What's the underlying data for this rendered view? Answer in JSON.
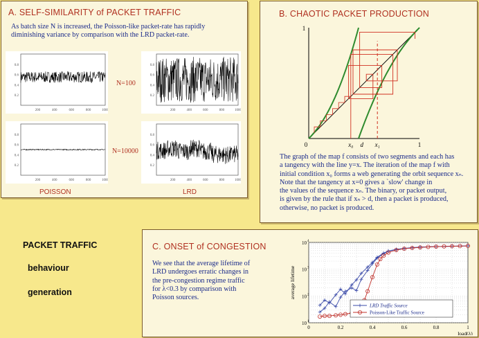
{
  "panel_a": {
    "title": "A.  SELF-SIMILARITY of PACKET TRAFFIC",
    "text": [
      "As batch size N is increased, the Poisson-like packet-rate has rapidly",
      "diminishing variance by comparison with the LRD packet-rate."
    ],
    "n100": "N=100",
    "n10000": "N=10000",
    "poisson_label": "POISSON",
    "lrd_label": "LRD",
    "xticks": [
      "200",
      "400",
      "600",
      "800",
      "1000"
    ],
    "yticks": [
      "0.8",
      "0.6",
      "0.4",
      "0.2"
    ]
  },
  "panel_b": {
    "title": "B. CHAOTIC PACKET PRODUCTION",
    "axis_top": "1",
    "axis_zero": "0",
    "axis_right": "1",
    "x0_label": "x₀",
    "d_label": "d",
    "x1_label": "x₁",
    "text": [
      "The graph of the map f  consists of two segments and each  has",
      "a tangency with the line  y=x. The iteration of the map  f  with",
      "initial condition x₀ forms a web generating  the orbit sequence xₙ.",
      "Note that the tangency at x=0 gives a `slow' change  in",
      "the values of the sequence xₙ.  The binary, or packet output,",
      "is given by the rule that if xₙ > d, then a packet is produced,",
      "otherwise, no packet is produced."
    ]
  },
  "panel_c": {
    "title": "C.  ONSET of CONGESTION",
    "text": [
      "We see that the average lifetime of",
      "LRD undergoes erratic changes in",
      "the pre-congestion regime traffic",
      "for λ<0.3 by comparison with",
      "Poisson sources."
    ],
    "ylabel": "average lifetime",
    "xlabel": "load(λ)",
    "legend_lrd": "LRD Traffic Source",
    "legend_poisson": "Poisson-Like Traffic Source"
  },
  "left": {
    "heading": "PACKET TRAFFIC",
    "item1": "behaviour",
    "item2": "generation"
  },
  "chart_data": {
    "type": "line",
    "xlabel": "load(λ)",
    "ylabel": "average lifetime",
    "xlim": [
      0,
      1
    ],
    "ylim": [
      10,
      10000
    ],
    "yscale": "log",
    "x_ticks": [
      "0",
      "0.2",
      "0.4",
      "0.6",
      "0.8",
      "1"
    ],
    "y_ticks": [
      "10^1",
      "10^2",
      "10^3",
      "10^4"
    ],
    "series": [
      {
        "name": "LRD Traffic Source",
        "color": "#3a4aa8",
        "x": [
          0.07,
          0.1,
          0.13,
          0.17,
          0.2,
          0.23,
          0.27,
          0.3,
          0.33,
          0.37,
          0.4,
          0.43,
          0.47,
          0.5,
          0.55,
          0.6,
          0.65,
          0.7,
          0.8,
          0.9,
          1.0
        ],
        "y": [
          45,
          70,
          55,
          110,
          180,
          120,
          260,
          400,
          700,
          1200,
          1800,
          2800,
          4000,
          4800,
          5500,
          6000,
          6400,
          6700,
          7000,
          7200,
          7400
        ]
      },
      {
        "name": "LRD Traffic Source",
        "color": "#3a4aa8",
        "x": [
          0.07,
          0.1,
          0.13,
          0.17,
          0.2,
          0.23,
          0.27,
          0.3,
          0.33,
          0.37,
          0.4,
          0.43,
          0.47,
          0.5,
          0.55,
          0.6,
          0.7,
          0.8,
          0.9,
          1.0
        ],
        "y": [
          25,
          35,
          60,
          40,
          90,
          150,
          200,
          160,
          420,
          900,
          1600,
          2600,
          3800,
          4700,
          5400,
          5900,
          6600,
          7000,
          7200,
          7400
        ]
      },
      {
        "name": "Poisson-Like Traffic Source",
        "color": "#c0302a",
        "x": [
          0.07,
          0.1,
          0.13,
          0.17,
          0.2,
          0.23,
          0.27,
          0.3,
          0.33,
          0.35,
          0.37,
          0.4,
          0.43,
          0.45,
          0.47,
          0.5,
          0.55,
          0.6,
          0.65,
          0.7,
          0.75,
          0.8,
          0.85,
          0.9,
          0.95,
          1.0
        ],
        "y": [
          17,
          18,
          18,
          19,
          20,
          21,
          23,
          28,
          40,
          70,
          150,
          500,
          1500,
          2400,
          3200,
          4200,
          5200,
          5800,
          6200,
          6500,
          6800,
          7000,
          7100,
          7200,
          7300,
          7400
        ]
      }
    ]
  }
}
